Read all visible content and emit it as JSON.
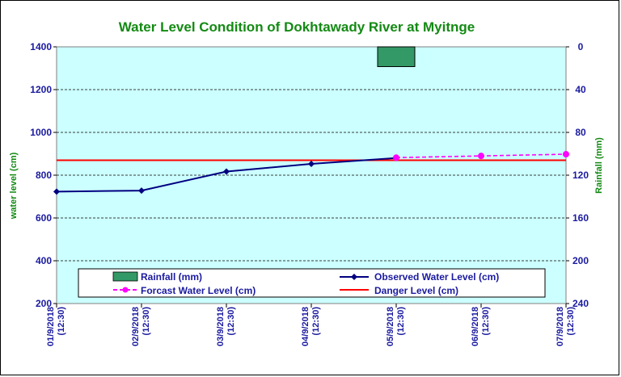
{
  "chart_data": {
    "type": "line",
    "title": "Water Level  Condition of Dokhtawady  River at Myitnge",
    "ylabel": "water level (cm)",
    "y2label": "Rainfall (mm)",
    "ylim": [
      200,
      1400
    ],
    "y2lim": [
      0,
      240
    ],
    "y_ticks": [
      "200",
      "400",
      "600",
      "800",
      "1000",
      "1200",
      "1400"
    ],
    "y2_ticks": [
      "0",
      "40",
      "80",
      "120",
      "160",
      "200",
      "240"
    ],
    "categories": [
      [
        "01/9/2018",
        "(12:30)"
      ],
      [
        "02/9/2018",
        "(12:30)"
      ],
      [
        "03/9/2018",
        "(12:30)"
      ],
      [
        "04/9/2018",
        "(12:30)"
      ],
      [
        "05/9/2018",
        "(12:30)"
      ],
      [
        "06/9/2018",
        "(12:30)"
      ],
      [
        "07/9/2018",
        "(12:30)"
      ]
    ],
    "series": [
      {
        "name": "Rainfall (mm)",
        "type": "bar",
        "axis": "right",
        "values": [
          0,
          0,
          0,
          0,
          18.5,
          0,
          0
        ],
        "color": "#339966"
      },
      {
        "name": "Observed Water Level (cm)",
        "type": "line",
        "axis": "left",
        "values": [
          723,
          728,
          817,
          853,
          880,
          null,
          null
        ],
        "color": "#000080"
      },
      {
        "name": "Forcast Water Level (cm)",
        "type": "line",
        "axis": "left",
        "dashed": true,
        "values": [
          null,
          null,
          null,
          null,
          882,
          890,
          898
        ],
        "color": "#ff00ff"
      },
      {
        "name": "Danger Level (cm)",
        "type": "hline",
        "axis": "left",
        "value": 870,
        "color": "#ff0000"
      }
    ],
    "legend": {
      "rainfall": "Rainfall (mm)",
      "observed": "Observed Water Level (cm)",
      "forecast": "Forcast Water Level (cm)",
      "danger": "Danger Level (cm)"
    },
    "plot_bg": "#ccffff",
    "grid": true
  }
}
